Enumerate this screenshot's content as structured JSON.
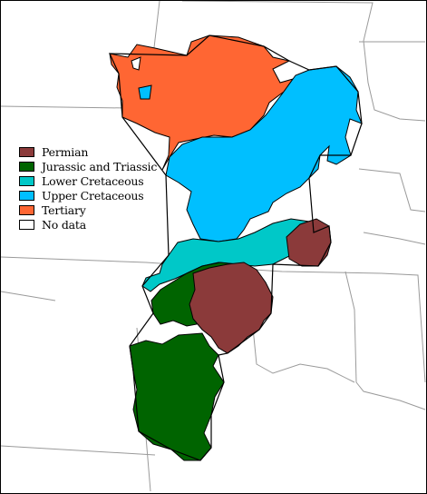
{
  "legend": {
    "items": [
      {
        "label": "Permian",
        "color": "#8b3a3a"
      },
      {
        "label": "Jurassic and Triassic",
        "color": "#006400"
      },
      {
        "label": "Lower Cretaceous",
        "color": "#00c8c8"
      },
      {
        "label": "Upper Cretaceous",
        "color": "#00bfff"
      },
      {
        "label": "Tertiary",
        "color": "#ff6633"
      },
      {
        "label": "No data",
        "color": "#ffffff"
      }
    ]
  },
  "map": {
    "stroke_color": "#000000",
    "state_line_color": "#9a9a9a"
  }
}
